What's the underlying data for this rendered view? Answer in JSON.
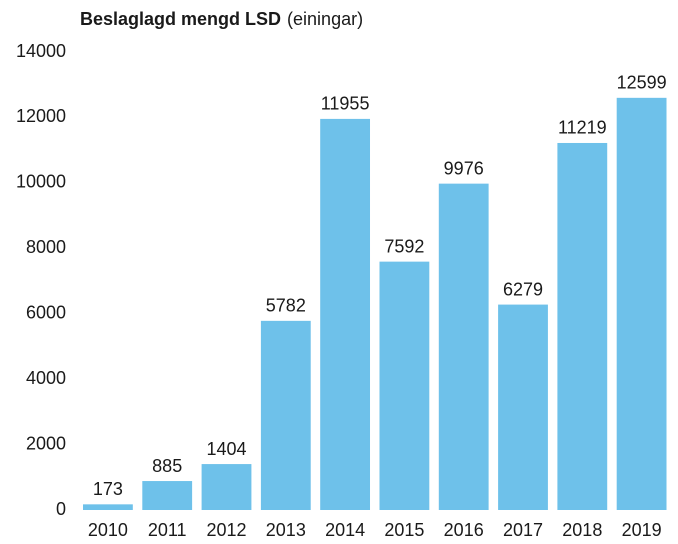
{
  "chart_data": {
    "type": "bar",
    "title": "Beslaglagd mengd LSD",
    "subtitle": "(einingar)",
    "categories": [
      "2010",
      "2011",
      "2012",
      "2013",
      "2014",
      "2015",
      "2016",
      "2017",
      "2018",
      "2019"
    ],
    "values": [
      173,
      885,
      1404,
      5782,
      11955,
      7592,
      9976,
      6279,
      11219,
      12599
    ],
    "color": "#6ec1ea",
    "ylim": [
      0,
      14000
    ],
    "yticks": [
      0,
      2000,
      4000,
      6000,
      8000,
      10000,
      12000,
      14000
    ],
    "grid": false
  }
}
